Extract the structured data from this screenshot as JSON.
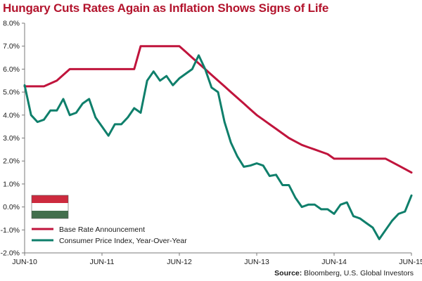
{
  "title": "Hungary Cuts Rates Again as Inflation Shows Signs of Life",
  "source": {
    "label": "Source:",
    "text": "Bloomberg, U.S. Global Investors"
  },
  "colors": {
    "title": "#b3142d",
    "base_rate": "#c0143c",
    "cpi": "#0f7f6b",
    "flag_red": "#cd2a3e",
    "flag_white": "#ffffff",
    "flag_green": "#436f4d",
    "axis": "#7a7a7a"
  },
  "legend": {
    "icon": "hungary-flag-icon",
    "placement": "bottom-left"
  },
  "chart_data": {
    "type": "line",
    "title": "Hungary Cuts Rates Again as Inflation Shows Signs of Life",
    "xlabel": "",
    "ylabel": "",
    "x_ticks": [
      "JUN-10",
      "JUN-11",
      "JUN-12",
      "JUN-13",
      "JUN-14",
      "JUN-15"
    ],
    "y_ticks": [
      "-2.0%",
      "-1.0%",
      "0.0%",
      "1.0%",
      "2.0%",
      "3.0%",
      "4.0%",
      "5.0%",
      "6.0%",
      "7.0%",
      "8.0%"
    ],
    "ylim": [
      -2,
      8
    ],
    "xlim": [
      "2010-06",
      "2015-06"
    ],
    "grid": false,
    "series": [
      {
        "name": "Base Rate Announcement",
        "x": [
          "2010-06",
          "2010-09",
          "2010-11",
          "2011-01",
          "2011-06",
          "2011-07",
          "2011-11",
          "2011-12",
          "2012-06",
          "2012-07",
          "2012-08",
          "2012-09",
          "2012-10",
          "2012-11",
          "2012-12",
          "2013-01",
          "2013-02",
          "2013-03",
          "2013-04",
          "2013-05",
          "2013-06",
          "2013-07",
          "2013-08",
          "2013-09",
          "2013-10",
          "2013-11",
          "2013-12",
          "2014-01",
          "2014-02",
          "2014-03",
          "2014-04",
          "2014-05",
          "2014-06",
          "2014-07",
          "2014-08",
          "2014-09",
          "2014-10",
          "2014-11",
          "2014-12",
          "2015-01",
          "2015-02",
          "2015-03",
          "2015-04",
          "2015-05",
          "2015-06"
        ],
        "values": [
          5.25,
          5.25,
          5.5,
          6.0,
          6.0,
          6.0,
          6.0,
          7.0,
          7.0,
          6.75,
          6.5,
          6.25,
          6.0,
          5.75,
          5.5,
          5.25,
          5.0,
          4.75,
          4.5,
          4.25,
          4.0,
          3.8,
          3.6,
          3.4,
          3.2,
          3.0,
          2.85,
          2.7,
          2.6,
          2.5,
          2.4,
          2.3,
          2.1,
          2.1,
          2.1,
          2.1,
          2.1,
          2.1,
          2.1,
          2.1,
          2.1,
          1.95,
          1.8,
          1.65,
          1.5
        ]
      },
      {
        "name": "Consumer Price Index, Year-Over-Year",
        "x": [
          "2010-06",
          "2010-07",
          "2010-08",
          "2010-09",
          "2010-10",
          "2010-11",
          "2010-12",
          "2011-01",
          "2011-02",
          "2011-03",
          "2011-04",
          "2011-05",
          "2011-06",
          "2011-07",
          "2011-08",
          "2011-09",
          "2011-10",
          "2011-11",
          "2011-12",
          "2012-01",
          "2012-02",
          "2012-03",
          "2012-04",
          "2012-05",
          "2012-06",
          "2012-07",
          "2012-08",
          "2012-09",
          "2012-10",
          "2012-11",
          "2012-12",
          "2013-01",
          "2013-02",
          "2013-03",
          "2013-04",
          "2013-05",
          "2013-06",
          "2013-07",
          "2013-08",
          "2013-09",
          "2013-10",
          "2013-11",
          "2013-12",
          "2014-01",
          "2014-02",
          "2014-03",
          "2014-04",
          "2014-05",
          "2014-06",
          "2014-07",
          "2014-08",
          "2014-09",
          "2014-10",
          "2014-11",
          "2014-12",
          "2015-01",
          "2015-02",
          "2015-03",
          "2015-04",
          "2015-05",
          "2015-06"
        ],
        "values": [
          5.3,
          4.0,
          3.7,
          3.8,
          4.2,
          4.2,
          4.7,
          4.0,
          4.1,
          4.5,
          4.7,
          3.9,
          3.5,
          3.1,
          3.6,
          3.6,
          3.9,
          4.3,
          4.1,
          5.5,
          5.9,
          5.5,
          5.7,
          5.3,
          5.6,
          5.8,
          6.0,
          6.6,
          6.0,
          5.2,
          5.0,
          3.7,
          2.8,
          2.2,
          1.75,
          1.8,
          1.9,
          1.8,
          1.35,
          1.4,
          0.95,
          0.95,
          0.4,
          0.0,
          0.1,
          0.1,
          -0.1,
          -0.1,
          -0.3,
          0.1,
          0.2,
          -0.4,
          -0.5,
          -0.7,
          -0.9,
          -1.4,
          -1.0,
          -0.6,
          -0.3,
          -0.2,
          0.5
        ]
      }
    ]
  }
}
